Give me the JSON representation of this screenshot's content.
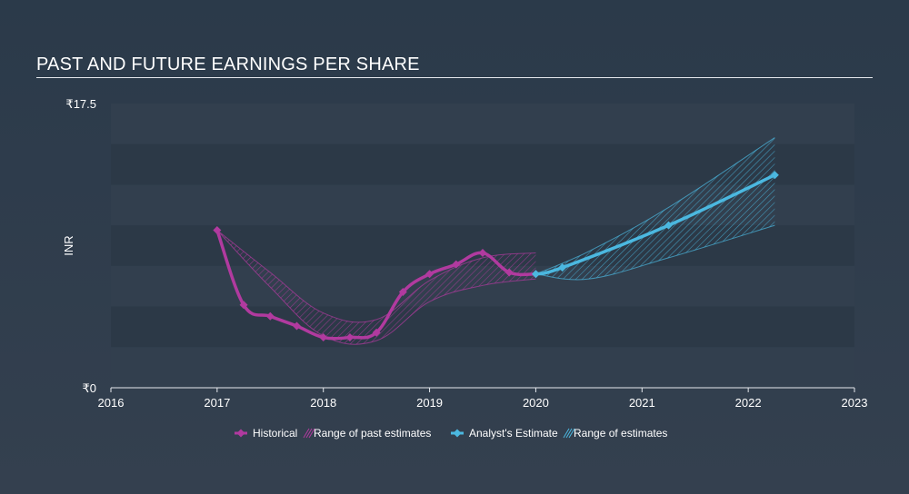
{
  "header": {
    "title": "PAST AND FUTURE EARNINGS PER SHARE"
  },
  "chart_data": {
    "type": "line",
    "title": "PAST AND FUTURE EARNINGS PER SHARE",
    "ylabel": "INR",
    "xlabel": "",
    "xlim": [
      2016,
      2023
    ],
    "ylim": [
      0,
      17.5
    ],
    "y_tick_labels": [
      {
        "value": 17.5,
        "label": "₹17.5"
      },
      {
        "value": 0,
        "label": "₹0"
      }
    ],
    "x_ticks": [
      {
        "value": 2016,
        "label": "2016"
      },
      {
        "value": 2017,
        "label": "2017"
      },
      {
        "value": 2018,
        "label": "2018"
      },
      {
        "value": 2019,
        "label": "2019"
      },
      {
        "value": 2020,
        "label": "2020"
      },
      {
        "value": 2021,
        "label": "2021"
      },
      {
        "value": 2022,
        "label": "2022"
      },
      {
        "value": 2023,
        "label": "2023"
      }
    ],
    "grid": "horizontal bands",
    "legend_position": "bottom-center",
    "colors": {
      "historical": "#b13a9f",
      "past_range": "#b13a9f",
      "analyst": "#4bb8e0",
      "future_range": "#4bb8e0"
    },
    "series": [
      {
        "name": "Historical",
        "points": [
          [
            2017.0,
            9.7
          ],
          [
            2017.25,
            5.1
          ],
          [
            2017.5,
            4.4
          ],
          [
            2017.75,
            3.8
          ],
          [
            2018.0,
            3.1
          ],
          [
            2018.25,
            3.1
          ],
          [
            2018.5,
            3.4
          ],
          [
            2018.75,
            5.9
          ],
          [
            2019.0,
            7.0
          ],
          [
            2019.25,
            7.6
          ],
          [
            2019.5,
            8.3
          ],
          [
            2019.75,
            7.1
          ],
          [
            2020.0,
            7.0
          ]
        ]
      },
      {
        "name": "Analyst's Estimate",
        "points": [
          [
            2020.0,
            7.0
          ],
          [
            2020.25,
            7.4
          ],
          [
            2021.25,
            10.0
          ],
          [
            2022.25,
            13.1
          ]
        ]
      }
    ],
    "ranges": [
      {
        "name": "Range of past estimates",
        "upper": [
          [
            2017.0,
            9.7
          ],
          [
            2017.5,
            7.1
          ],
          [
            2018.0,
            4.6
          ],
          [
            2018.5,
            4.2
          ],
          [
            2019.0,
            6.6
          ],
          [
            2019.5,
            8.0
          ],
          [
            2020.0,
            8.3
          ]
        ],
        "lower": [
          [
            2017.0,
            9.7
          ],
          [
            2017.5,
            6.2
          ],
          [
            2018.0,
            3.2
          ],
          [
            2018.5,
            2.9
          ],
          [
            2019.0,
            5.3
          ],
          [
            2019.5,
            6.3
          ],
          [
            2020.0,
            6.7
          ]
        ]
      },
      {
        "name": "Range of estimates",
        "upper": [
          [
            2020.0,
            7.0
          ],
          [
            2020.5,
            8.4
          ],
          [
            2021.25,
            11.1
          ],
          [
            2022.25,
            15.4
          ]
        ],
        "lower": [
          [
            2020.0,
            7.0
          ],
          [
            2020.5,
            6.7
          ],
          [
            2021.25,
            8.0
          ],
          [
            2022.25,
            10.0
          ]
        ]
      }
    ],
    "legend": [
      {
        "label": "Historical",
        "kind": "line-marker",
        "color": "#b13a9f"
      },
      {
        "label": "Range of past estimates",
        "kind": "hatch",
        "color": "#b13a9f"
      },
      {
        "label": "Analyst's Estimate",
        "kind": "line-marker",
        "color": "#4bb8e0"
      },
      {
        "label": "Range of estimates",
        "kind": "hatch",
        "color": "#4bb8e0"
      }
    ]
  }
}
